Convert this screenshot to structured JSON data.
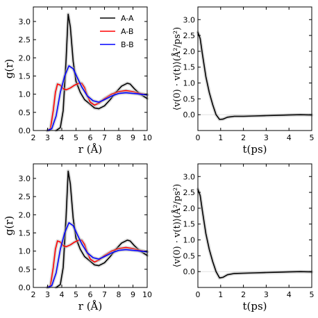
{
  "colors": {
    "A-A": "#000000",
    "A-B": "#ff0000",
    "B-B": "#0000ff",
    "band": "#aaaaaa"
  },
  "chart_data": [
    {
      "type": "line",
      "panel": "top-left",
      "xlabel": "r (Å)",
      "ylabel": "g(r)",
      "xlim": [
        2,
        10
      ],
      "ylim": [
        0,
        3.4
      ],
      "xticks": [
        "2",
        "3",
        "4",
        "5",
        "6",
        "7",
        "8",
        "9",
        "10"
      ],
      "yticks": [
        "0.0",
        "0.5",
        "1.0",
        "1.5",
        "2.0",
        "2.5",
        "3.0"
      ],
      "legend": "top-right",
      "series": [
        {
          "name": "A-A",
          "x": [
            3.6,
            3.9,
            4.1,
            4.3,
            4.45,
            4.6,
            4.8,
            5.0,
            5.3,
            5.6,
            6.0,
            6.3,
            6.6,
            7.0,
            7.4,
            7.8,
            8.2,
            8.6,
            8.8,
            9.1,
            9.5,
            10.0
          ],
          "y": [
            0,
            0.08,
            0.55,
            1.95,
            3.2,
            2.85,
            1.9,
            1.35,
            1.05,
            0.85,
            0.72,
            0.62,
            0.6,
            0.68,
            0.85,
            1.05,
            1.22,
            1.3,
            1.28,
            1.15,
            1.0,
            0.88
          ]
        },
        {
          "name": "A-B",
          "x": [
            3.0,
            3.2,
            3.4,
            3.55,
            3.7,
            3.9,
            4.1,
            4.3,
            4.6,
            4.9,
            5.2,
            5.4,
            5.6,
            5.8,
            6.0,
            6.3,
            6.6,
            7.0,
            7.5,
            8.0,
            8.5,
            9.0,
            9.5,
            10.0
          ],
          "y": [
            0,
            0.05,
            0.55,
            1.05,
            1.28,
            1.25,
            1.15,
            1.12,
            1.17,
            1.25,
            1.3,
            1.3,
            1.18,
            0.95,
            0.78,
            0.7,
            0.75,
            0.88,
            1.0,
            1.07,
            1.1,
            1.07,
            1.02,
            0.98
          ]
        },
        {
          "name": "B-B",
          "x": [
            3.0,
            3.3,
            3.6,
            3.9,
            4.2,
            4.5,
            4.8,
            5.1,
            5.4,
            5.8,
            6.2,
            6.6,
            7.0,
            7.5,
            8.0,
            8.5,
            9.0,
            9.5,
            10.0
          ],
          "y": [
            0,
            0.05,
            0.4,
            1.05,
            1.5,
            1.78,
            1.7,
            1.45,
            1.2,
            0.95,
            0.82,
            0.78,
            0.85,
            0.95,
            1.02,
            1.04,
            1.02,
            1.0,
            0.98
          ]
        }
      ]
    },
    {
      "type": "line",
      "panel": "top-right",
      "xlabel": "t(ps)",
      "ylabel": "⟨v(0) · v(t)⟩(Å²/ps²)",
      "xlim": [
        0,
        5
      ],
      "ylim": [
        -0.5,
        3.4
      ],
      "xticks": [
        "0",
        "1",
        "2",
        "3",
        "4",
        "5"
      ],
      "yticks": [
        "0.0",
        "0.5",
        "1.0",
        "1.5",
        "2.0",
        "2.5",
        "3.0"
      ],
      "series": [
        {
          "x": [
            0,
            0.1,
            0.2,
            0.35,
            0.5,
            0.65,
            0.8,
            0.95,
            1.1,
            1.3,
            1.6,
            2.0,
            2.5,
            3.0,
            3.5,
            4.0,
            4.5,
            5.0
          ],
          "y": [
            2.6,
            2.4,
            1.9,
            1.2,
            0.7,
            0.32,
            0.0,
            -0.15,
            -0.14,
            -0.08,
            -0.05,
            -0.05,
            -0.04,
            -0.03,
            -0.02,
            -0.01,
            0.0,
            -0.01
          ]
        }
      ]
    },
    {
      "type": "line",
      "panel": "bottom-left",
      "xlabel": "r (Å)",
      "ylabel": "g(r)",
      "xlim": [
        2,
        10
      ],
      "ylim": [
        0,
        3.4
      ],
      "xticks": [
        "2",
        "3",
        "4",
        "5",
        "6",
        "7",
        "8",
        "9",
        "10"
      ],
      "yticks": [
        "0.0",
        "0.5",
        "1.0",
        "1.5",
        "2.0",
        "2.5",
        "3.0"
      ],
      "series": [
        {
          "name": "A-A",
          "x": [
            3.6,
            3.9,
            4.1,
            4.3,
            4.45,
            4.6,
            4.8,
            5.0,
            5.3,
            5.6,
            6.0,
            6.3,
            6.6,
            7.0,
            7.4,
            7.8,
            8.2,
            8.6,
            8.8,
            9.1,
            9.5,
            10.0
          ],
          "y": [
            0,
            0.08,
            0.55,
            1.95,
            3.2,
            2.85,
            1.9,
            1.35,
            1.05,
            0.85,
            0.72,
            0.62,
            0.6,
            0.68,
            0.85,
            1.05,
            1.22,
            1.3,
            1.28,
            1.15,
            1.0,
            0.88
          ]
        },
        {
          "name": "A-B",
          "x": [
            3.0,
            3.2,
            3.4,
            3.55,
            3.7,
            3.9,
            4.1,
            4.3,
            4.6,
            4.9,
            5.2,
            5.4,
            5.6,
            5.8,
            6.0,
            6.3,
            6.6,
            7.0,
            7.5,
            8.0,
            8.5,
            9.0,
            9.5,
            10.0
          ],
          "y": [
            0,
            0.05,
            0.55,
            1.05,
            1.28,
            1.25,
            1.15,
            1.12,
            1.17,
            1.25,
            1.3,
            1.3,
            1.18,
            0.95,
            0.78,
            0.7,
            0.75,
            0.88,
            1.0,
            1.07,
            1.1,
            1.07,
            1.02,
            0.98
          ]
        },
        {
          "name": "B-B",
          "x": [
            3.0,
            3.3,
            3.6,
            3.9,
            4.2,
            4.5,
            4.8,
            5.1,
            5.4,
            5.8,
            6.2,
            6.6,
            7.0,
            7.5,
            8.0,
            8.5,
            9.0,
            9.5,
            10.0
          ],
          "y": [
            0,
            0.05,
            0.4,
            1.05,
            1.5,
            1.78,
            1.7,
            1.45,
            1.2,
            0.95,
            0.82,
            0.78,
            0.85,
            0.95,
            1.02,
            1.04,
            1.02,
            1.0,
            0.98
          ]
        }
      ]
    },
    {
      "type": "line",
      "panel": "bottom-right",
      "xlabel": "t(ps)",
      "ylabel": "⟨v(0) · v(t)⟩(Å²/ps²)",
      "xlim": [
        0,
        5
      ],
      "ylim": [
        -0.5,
        3.4
      ],
      "xticks": [
        "0",
        "1",
        "2",
        "3",
        "4",
        "5"
      ],
      "yticks": [
        "0.0",
        "0.5",
        "1.0",
        "1.5",
        "2.0",
        "2.5",
        "3.0"
      ],
      "series": [
        {
          "x": [
            0,
            0.1,
            0.2,
            0.35,
            0.5,
            0.65,
            0.8,
            0.95,
            1.1,
            1.3,
            1.6,
            2.0,
            2.5,
            3.0,
            3.5,
            4.0,
            4.5,
            5.0
          ],
          "y": [
            2.6,
            2.4,
            1.9,
            1.2,
            0.7,
            0.32,
            0.0,
            -0.2,
            -0.18,
            -0.1,
            -0.06,
            -0.05,
            -0.04,
            -0.03,
            -0.02,
            -0.01,
            0.0,
            -0.01
          ]
        }
      ]
    }
  ]
}
